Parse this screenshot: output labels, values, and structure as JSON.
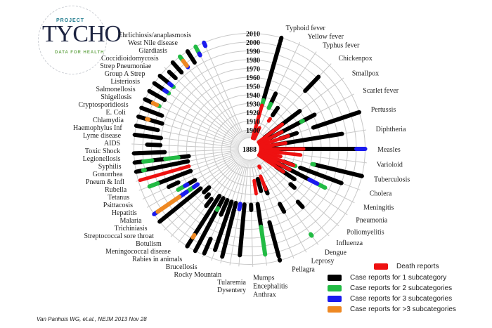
{
  "logo": {
    "project": "PROJECT",
    "name": "TYCHO",
    "tagline": "DATA FOR HEALTH"
  },
  "citation": "Van Panhuis WG, et.al., NEJM 2013 Nov 28",
  "colors": {
    "death": "#ee1111",
    "c1": "#000000",
    "c2": "#22bb44",
    "c3": "#1a1aee",
    "c4": "#ee8822",
    "grid": "#c8c8c8"
  },
  "legend": [
    {
      "key": "death",
      "label": "Death reports"
    },
    {
      "key": "c1",
      "label": "Case reports for 1 subcategory"
    },
    {
      "key": "c2",
      "label": "Case reports for 2 subcategories"
    },
    {
      "key": "c3",
      "label": "Case reports for 3 subcategories"
    },
    {
      "key": "c4",
      "label": "Case reports for >3 subcategories"
    }
  ],
  "chart_data": {
    "type": "radial bar",
    "center_label": "1888",
    "year_ticks": [
      "1900",
      "1910",
      "1920",
      "1930",
      "1940",
      "1950",
      "1960",
      "1970",
      "1980",
      "1990",
      "2000",
      "2010"
    ],
    "radial_range": [
      1888,
      2010
    ],
    "diseases": [
      {
        "name": "Typhoid fever",
        "segments": [
          [
            "death",
            1888,
            1930
          ],
          [
            "c2",
            1930,
            1936
          ],
          [
            "c1",
            1936,
            2003
          ],
          [
            "c1",
            2006,
            2010
          ]
        ]
      },
      {
        "name": "Yellow fever",
        "segments": [
          [
            "death",
            1888,
            1905
          ],
          [
            "c2",
            1930,
            1935
          ],
          [
            "c1",
            1935,
            1948
          ]
        ]
      },
      {
        "name": "Typhus fever",
        "segments": [
          [
            "death",
            1917,
            1920
          ],
          [
            "c1",
            1925,
            1935
          ]
        ]
      },
      {
        "name": "Chickenpox",
        "segments": [
          [
            "c1",
            1970,
            1992
          ]
        ]
      },
      {
        "name": "Smallpox",
        "segments": [
          [
            "death",
            1888,
            1925
          ],
          [
            "c1",
            1900,
            1950
          ]
        ]
      },
      {
        "name": "Scarlet fever",
        "segments": [
          [
            "death",
            1888,
            1920
          ],
          [
            "c1",
            1905,
            1945
          ],
          [
            "c2",
            1945,
            1947
          ],
          [
            "c1",
            1947,
            1962
          ]
        ]
      },
      {
        "name": "Pertussis",
        "segments": [
          [
            "death",
            1888,
            1925
          ],
          [
            "c1",
            1915,
            1935
          ],
          [
            "c1",
            1955,
            2010
          ]
        ]
      },
      {
        "name": "Diphtheria",
        "segments": [
          [
            "death",
            1888,
            1920
          ],
          [
            "c1",
            1905,
            1985
          ]
        ]
      },
      {
        "name": "Measles",
        "segments": [
          [
            "death",
            1888,
            1940
          ],
          [
            "c1",
            1905,
            2000
          ],
          [
            "c3",
            2000,
            2010
          ]
        ]
      },
      {
        "name": "Varioloid",
        "segments": [
          [
            "death",
            1888,
            1937
          ]
        ]
      },
      {
        "name": "Tuberculosis",
        "segments": [
          [
            "death",
            1888,
            1915
          ],
          [
            "c2",
            1952,
            1954
          ],
          [
            "c1",
            1954,
            2010
          ]
        ]
      },
      {
        "name": "Cholera",
        "segments": [
          [
            "death",
            1888,
            1932
          ],
          [
            "c1",
            1920,
            1932
          ],
          [
            "c2",
            1932,
            1934
          ],
          [
            "c1",
            1940,
            1990
          ]
        ]
      },
      {
        "name": "Meningitis",
        "segments": [
          [
            "death",
            1888,
            1930
          ],
          [
            "c1",
            1910,
            1955
          ],
          [
            "c3",
            1955,
            1965
          ],
          [
            "c2",
            1965,
            1975
          ]
        ]
      },
      {
        "name": "Pneumonia",
        "segments": [
          [
            "death",
            1888,
            1925
          ],
          [
            "c1",
            1915,
            1940
          ]
        ]
      },
      {
        "name": "Poliomyelitis",
        "segments": [
          [
            "c1",
            1940,
            1946
          ]
        ]
      },
      {
        "name": "Influenza",
        "segments": [
          [
            "c1",
            1960,
            1968
          ]
        ]
      },
      {
        "name": "Dengue",
        "segments": [
          [
            "c2",
            1998,
            2000
          ]
        ]
      },
      {
        "name": "Leprosy",
        "segments": [
          [
            "death",
            1901,
            1903
          ],
          [
            "c1",
            1950,
            1960
          ]
        ]
      },
      {
        "name": "Pellagra",
        "segments": [
          [
            "death",
            1912,
            1928
          ],
          [
            "c1",
            1925,
            1933
          ]
        ]
      },
      {
        "name": "Mumps",
        "segments": [
          [
            "c1",
            1914,
            1928
          ],
          [
            "c1",
            1965,
            2005
          ],
          [
            "c1",
            2009,
            2010
          ]
        ]
      },
      {
        "name": "Encephalitis",
        "segments": [
          [
            "death",
            1915,
            1930
          ],
          [
            "c1",
            1942,
            1968
          ],
          [
            "c2",
            1968,
            2000
          ]
        ]
      },
      {
        "name": "Anthrax",
        "segments": [
          [
            "c1",
            1942,
            1948
          ]
        ]
      },
      {
        "name": "Dysentery",
        "segments": [
          [
            "c1",
            1942,
            1948
          ],
          [
            "c1",
            1950,
            2000
          ]
        ]
      },
      {
        "name": "Tularemia",
        "segments": [
          [
            "c3",
            1942,
            1948
          ]
        ]
      },
      {
        "name": "Rocky Mountain",
        "segments": [
          [
            "c1",
            1942,
            1948
          ],
          [
            "c1",
            1950,
            2005
          ]
        ]
      },
      {
        "name": "Brucellosis",
        "segments": [
          [
            "c1",
            1942,
            1960
          ],
          [
            "c1",
            1962,
            2000
          ]
        ]
      },
      {
        "name": "Rabies in animals",
        "segments": [
          [
            "c1",
            1942,
            1960
          ],
          [
            "c1",
            1990,
            2008
          ]
        ]
      },
      {
        "name": "Meningococcal disease",
        "segments": [
          [
            "c1",
            1942,
            1955
          ],
          [
            "c2",
            1955,
            1957
          ],
          [
            "c1",
            1957,
            2010
          ]
        ]
      },
      {
        "name": "Botulism",
        "segments": [
          [
            "c1",
            1942,
            1995
          ],
          [
            "c4",
            1995,
            1998
          ],
          [
            "c1",
            1998,
            2010
          ]
        ]
      },
      {
        "name": "Streptococcal sore throat",
        "segments": [
          [
            "c1",
            1950,
            1960
          ]
        ]
      },
      {
        "name": "Trichiniasis",
        "segments": [
          [
            "c1",
            1948,
            1952
          ]
        ]
      },
      {
        "name": "Malaria",
        "segments": [
          [
            "c1",
            1942,
            1950
          ]
        ]
      },
      {
        "name": "Hepatitis",
        "segments": [
          [
            "c1",
            1950,
            2010
          ]
        ]
      },
      {
        "name": "Psittacosis",
        "segments": [
          [
            "c3",
            1950,
            1955
          ],
          [
            "c2",
            1955,
            1965
          ],
          [
            "c3",
            1965,
            1975
          ],
          [
            "c4",
            1975,
            2005
          ],
          [
            "c2",
            2005,
            2007
          ],
          [
            "c3",
            2007,
            2010
          ]
        ]
      },
      {
        "name": "Tetanus",
        "segments": [
          [
            "c1",
            1950,
            1960
          ],
          [
            "c3",
            1960,
            1963
          ],
          [
            "c2",
            1963,
            1972
          ]
        ]
      },
      {
        "name": "Rubella",
        "segments": [
          [
            "c1",
            1968,
            1980
          ]
        ]
      },
      {
        "name": "Pneum & Infl",
        "segments": [
          [
            "c1",
            1950,
            1990
          ],
          [
            "c2",
            1990,
            2000
          ]
        ]
      },
      {
        "name": "Gonorrhea",
        "segments": [
          [
            "death",
            1950,
            2008
          ]
        ]
      },
      {
        "name": "Syphilis",
        "segments": [
          [
            "c1",
            1950,
            2000
          ],
          [
            "c2",
            2000,
            2002
          ],
          [
            "c1",
            2002,
            2010
          ]
        ]
      },
      {
        "name": "Legionellosis",
        "segments": [
          [
            "c1",
            1948,
            1960
          ],
          [
            "c2",
            1960,
            1975
          ],
          [
            "c1",
            1975,
            1990
          ],
          [
            "c2",
            1990,
            2000
          ],
          [
            "c1",
            2000,
            2010
          ]
        ]
      },
      {
        "name": "Toxic Shock",
        "segments": [
          [
            "c1",
            1975,
            2010
          ]
        ]
      },
      {
        "name": "AIDS",
        "segments": [
          [
            "c1",
            1980,
            1995
          ]
        ]
      },
      {
        "name": "Lyme disease",
        "segments": [
          [
            "c1",
            1980,
            2010
          ]
        ]
      },
      {
        "name": "Haemophylus Inf",
        "segments": [
          [
            "c1",
            1985,
            2010
          ]
        ]
      },
      {
        "name": "Chlamydia",
        "segments": [
          [
            "c1",
            1982,
            1998
          ],
          [
            "c4",
            1998,
            2000
          ],
          [
            "c1",
            2000,
            2010
          ]
        ]
      },
      {
        "name": "E. Coli",
        "segments": [
          [
            "c1",
            1985,
            2010
          ]
        ]
      },
      {
        "name": "Cryptosporidiosis",
        "segments": [
          [
            "c2",
            1992,
            1995
          ],
          [
            "c4",
            1995,
            2000
          ],
          [
            "c1",
            2000,
            2010
          ]
        ]
      },
      {
        "name": "Shigellosis",
        "segments": [
          [
            "c1",
            1990,
            2010
          ]
        ]
      },
      {
        "name": "Salmonellosis",
        "segments": [
          [
            "c2",
            1990,
            1993
          ],
          [
            "c3",
            1993,
            1996
          ],
          [
            "c1",
            1996,
            2010
          ]
        ]
      },
      {
        "name": "Listeriosis",
        "segments": [
          [
            "c2",
            1990,
            1993
          ],
          [
            "c3",
            1993,
            1996
          ],
          [
            "c1",
            1996,
            2010
          ]
        ]
      },
      {
        "name": "Group A Strep",
        "segments": [
          [
            "c1",
            1995,
            2005
          ]
        ]
      },
      {
        "name": "Strep Pneumoniae",
        "segments": [
          [
            "c1",
            1995,
            2010
          ]
        ]
      },
      {
        "name": "Coccidioidomycosis",
        "segments": [
          [
            "c3",
            1995,
            1997
          ],
          [
            "c4",
            1997,
            2004
          ],
          [
            "c2",
            2004,
            2010
          ]
        ]
      },
      {
        "name": "Giardiasis",
        "segments": [
          [
            "c1",
            1995,
            2010
          ]
        ]
      },
      {
        "name": "West Nile disease",
        "segments": [
          [
            "c3",
            1999,
            2001
          ],
          [
            "c2",
            2001,
            2010
          ]
        ]
      },
      {
        "name": "Ehrlichiosis/anaplasmosis",
        "segments": [
          [
            "c3",
            2006,
            2010
          ]
        ]
      }
    ]
  }
}
